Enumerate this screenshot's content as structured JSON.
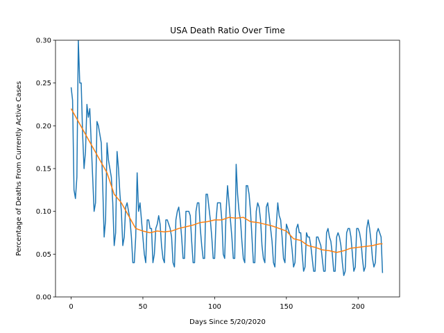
{
  "chart_data": {
    "type": "line",
    "title": "USA Death Ratio Over Time",
    "xlabel": "Days Since 5/20/2020",
    "ylabel": "Percentage of Deaths From Currently Active Cases",
    "xlim": [
      -10.9,
      228.9
    ],
    "ylim": [
      0,
      0.3
    ],
    "xticks": [
      0,
      50,
      100,
      150,
      200
    ],
    "yticks": [
      {
        "value": 0,
        "label": "0.00"
      },
      {
        "value": 0.05,
        "label": "0.05"
      },
      {
        "value": 0.1,
        "label": "0.10"
      },
      {
        "value": 0.15,
        "label": "0.15"
      },
      {
        "value": 0.2,
        "label": "0.20"
      },
      {
        "value": 0.25,
        "label": "0.25"
      },
      {
        "value": 0.3,
        "label": "0.30"
      }
    ],
    "series": [
      {
        "color": "#1f77b4",
        "x": [
          0,
          1,
          2,
          3,
          4,
          5,
          6,
          7,
          8,
          9,
          10,
          11,
          12,
          13,
          14,
          15,
          16,
          17,
          18,
          19,
          20,
          21,
          22,
          23,
          24,
          25,
          26,
          27,
          28,
          29,
          30,
          31,
          32,
          33,
          34,
          35,
          36,
          37,
          38,
          39,
          40,
          41,
          42,
          43,
          44,
          45,
          46,
          47,
          48,
          49,
          50,
          51,
          52,
          53,
          54,
          55,
          56,
          57,
          58,
          59,
          60,
          61,
          62,
          63,
          64,
          65,
          66,
          67,
          68,
          69,
          70,
          71,
          72,
          73,
          74,
          75,
          76,
          77,
          78,
          79,
          80,
          81,
          82,
          83,
          84,
          85,
          86,
          87,
          88,
          89,
          90,
          91,
          92,
          93,
          94,
          95,
          96,
          97,
          98,
          99,
          100,
          101,
          102,
          103,
          104,
          105,
          106,
          107,
          108,
          109,
          110,
          111,
          112,
          113,
          114,
          115,
          116,
          117,
          118,
          119,
          120,
          121,
          122,
          123,
          124,
          125,
          126,
          127,
          128,
          129,
          130,
          131,
          132,
          133,
          134,
          135,
          136,
          137,
          138,
          139,
          140,
          141,
          142,
          143,
          144,
          145,
          146,
          147,
          148,
          149,
          150,
          151,
          152,
          153,
          154,
          155,
          156,
          157,
          158,
          159,
          160,
          161,
          162,
          163,
          164,
          165,
          166,
          167,
          168,
          169,
          170,
          171,
          172,
          173,
          174,
          175,
          176,
          177,
          178,
          179,
          180,
          181,
          182,
          183,
          184,
          185,
          186,
          187,
          188,
          189,
          190,
          191,
          192,
          193,
          194,
          195,
          196,
          197,
          198,
          199,
          200,
          201,
          202,
          203,
          204,
          205,
          206,
          207,
          208,
          209,
          210,
          211,
          212,
          213,
          214,
          215,
          216,
          217
        ],
        "values": [
          0.245,
          0.23,
          0.125,
          0.115,
          0.14,
          0.3,
          0.25,
          0.25,
          0.19,
          0.15,
          0.17,
          0.225,
          0.21,
          0.22,
          0.18,
          0.14,
          0.1,
          0.11,
          0.205,
          0.2,
          0.19,
          0.18,
          0.13,
          0.07,
          0.09,
          0.18,
          0.16,
          0.15,
          0.14,
          0.11,
          0.06,
          0.075,
          0.17,
          0.15,
          0.12,
          0.1,
          0.06,
          0.07,
          0.105,
          0.11,
          0.1,
          0.09,
          0.07,
          0.04,
          0.04,
          0.07,
          0.145,
          0.1,
          0.11,
          0.09,
          0.07,
          0.05,
          0.04,
          0.09,
          0.09,
          0.08,
          0.08,
          0.04,
          0.05,
          0.08,
          0.085,
          0.095,
          0.085,
          0.06,
          0.045,
          0.04,
          0.09,
          0.09,
          0.085,
          0.08,
          0.07,
          0.04,
          0.035,
          0.09,
          0.1,
          0.105,
          0.09,
          0.07,
          0.045,
          0.045,
          0.1,
          0.1,
          0.1,
          0.095,
          0.065,
          0.04,
          0.04,
          0.1,
          0.11,
          0.11,
          0.08,
          0.06,
          0.045,
          0.045,
          0.12,
          0.12,
          0.105,
          0.09,
          0.07,
          0.045,
          0.045,
          0.09,
          0.11,
          0.11,
          0.11,
          0.09,
          0.05,
          0.045,
          0.1,
          0.13,
          0.11,
          0.09,
          0.07,
          0.045,
          0.045,
          0.155,
          0.12,
          0.1,
          0.09,
          0.065,
          0.045,
          0.04,
          0.13,
          0.13,
          0.12,
          0.1,
          0.07,
          0.04,
          0.04,
          0.1,
          0.11,
          0.105,
          0.09,
          0.06,
          0.045,
          0.04,
          0.105,
          0.11,
          0.095,
          0.08,
          0.065,
          0.04,
          0.035,
          0.085,
          0.11,
          0.095,
          0.09,
          0.07,
          0.045,
          0.04,
          0.085,
          0.08,
          0.075,
          0.07,
          0.055,
          0.035,
          0.04,
          0.08,
          0.085,
          0.075,
          0.075,
          0.05,
          0.03,
          0.035,
          0.075,
          0.07,
          0.07,
          0.06,
          0.045,
          0.03,
          0.03,
          0.07,
          0.07,
          0.065,
          0.06,
          0.045,
          0.03,
          0.03,
          0.075,
          0.08,
          0.07,
          0.065,
          0.05,
          0.03,
          0.03,
          0.07,
          0.075,
          0.07,
          0.06,
          0.04,
          0.025,
          0.03,
          0.075,
          0.08,
          0.08,
          0.07,
          0.05,
          0.03,
          0.035,
          0.08,
          0.08,
          0.075,
          0.065,
          0.045,
          0.03,
          0.035,
          0.08,
          0.09,
          0.08,
          0.065,
          0.045,
          0.035,
          0.04,
          0.075,
          0.08,
          0.075,
          0.07,
          0.028
        ]
      },
      {
        "color": "#ff7f0e",
        "x": [
          0,
          5,
          10,
          15,
          20,
          25,
          30,
          35,
          40,
          45,
          50,
          55,
          60,
          65,
          70,
          75,
          80,
          85,
          90,
          95,
          100,
          105,
          110,
          115,
          120,
          125,
          130,
          135,
          140,
          145,
          150,
          155,
          160,
          165,
          170,
          175,
          180,
          185,
          190,
          195,
          200,
          205,
          210,
          215,
          217
        ],
        "values": [
          0.22,
          0.205,
          0.19,
          0.175,
          0.16,
          0.145,
          0.12,
          0.11,
          0.095,
          0.08,
          0.077,
          0.075,
          0.077,
          0.076,
          0.077,
          0.08,
          0.082,
          0.084,
          0.087,
          0.088,
          0.09,
          0.09,
          0.093,
          0.092,
          0.093,
          0.088,
          0.087,
          0.085,
          0.083,
          0.08,
          0.077,
          0.068,
          0.066,
          0.06,
          0.058,
          0.055,
          0.054,
          0.052,
          0.054,
          0.057,
          0.058,
          0.059,
          0.06,
          0.062,
          0.062
        ]
      }
    ]
  }
}
